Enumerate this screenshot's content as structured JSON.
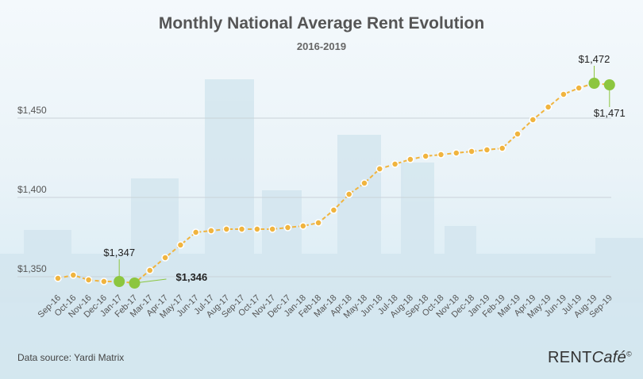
{
  "chart_data": {
    "type": "line",
    "title": "Monthly National Average Rent Evolution",
    "subtitle": "2016-2019",
    "xlabel": "",
    "ylabel": "",
    "ylim": [
      1335,
      1485
    ],
    "yticks": [
      1350,
      1400,
      1450
    ],
    "ytick_labels": [
      "$1,350",
      "$1,400",
      "$1,450"
    ],
    "grid": true,
    "categories": [
      "Sep-16",
      "Oct-16",
      "Nov-16",
      "Dec-16",
      "Jan-17",
      "Feb-17",
      "Mar-17",
      "Apr-17",
      "May-17",
      "Jun-17",
      "Jul-17",
      "Aug-17",
      "Sep-17",
      "Oct-17",
      "Nov-17",
      "Dec-17",
      "Jan-18",
      "Feb-18",
      "Mar-18",
      "Apr-18",
      "May-18",
      "Jun-18",
      "Jul-18",
      "Aug-18",
      "Sep-18",
      "Oct-18",
      "Nov-18",
      "Dec-18",
      "Jan-19",
      "Feb-19",
      "Mar-19",
      "Apr-19",
      "May-19",
      "Jun-19",
      "Jul-19",
      "Aug-19",
      "Sep-19"
    ],
    "series": [
      {
        "values": [
          1349,
          1351,
          1348,
          1347,
          1347,
          1346,
          1354,
          1362,
          1370,
          1378,
          1379,
          1380,
          1380,
          1380,
          1380,
          1381,
          1382,
          1384,
          1392,
          1402,
          1409,
          1418,
          1421,
          1424,
          1426,
          1427,
          1428,
          1429,
          1430,
          1431,
          1440,
          1449,
          1457,
          1465,
          1469,
          1472,
          1471
        ],
        "color": "#f0b43f"
      }
    ],
    "highlights": [
      {
        "index": 4,
        "label": "$1,347",
        "color": "#8cc63f"
      },
      {
        "index": 5,
        "label": "$1,346",
        "color": "#8cc63f"
      },
      {
        "index": 35,
        "label": "$1,472",
        "color": "#8cc63f"
      },
      {
        "index": 36,
        "label": "$1,471",
        "color": "#8cc63f"
      }
    ],
    "source": "Data source: Yardi Matrix",
    "brand": "RENTCafé"
  },
  "logo": {
    "rent": "RENT",
    "cafe": "Café",
    "reg": "©"
  }
}
